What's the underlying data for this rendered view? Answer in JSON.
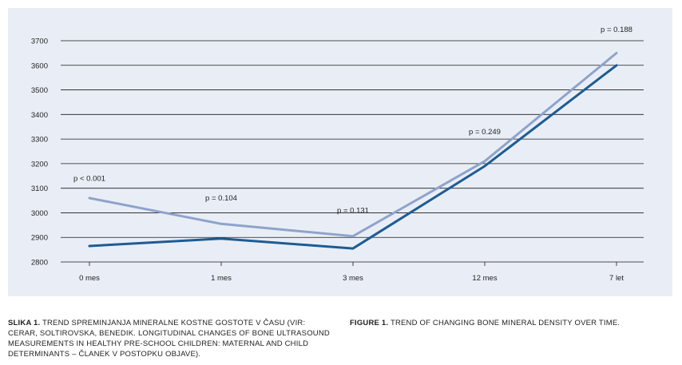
{
  "chart_data": {
    "type": "line",
    "categories": [
      "0 mes",
      "1 mes",
      "3 mes",
      "12 mes",
      "7 let"
    ],
    "series": [
      {
        "values": [
          3060,
          2955,
          2905,
          3210,
          3650
        ],
        "color": "#8ea3cc"
      },
      {
        "values": [
          2865,
          2895,
          2855,
          3190,
          3600
        ],
        "color": "#1d5c94"
      }
    ],
    "annotations": [
      "p < 0.001",
      "p = 0.104",
      "p = 0.131",
      "p = 0.249",
      "p = 0.188"
    ],
    "annotation_values": [
      3140,
      3060,
      3010,
      3330,
      3745
    ],
    "yticks": [
      2800,
      2900,
      3000,
      3100,
      3200,
      3300,
      3400,
      3500,
      3600,
      3700
    ],
    "ylim": [
      2800,
      3700
    ],
    "grid": true,
    "title": "",
    "xlabel": "",
    "ylabel": ""
  },
  "captions": {
    "left_label": "SLIKA 1.",
    "left_text": "TREND SPREMINJANJA MINERALNE KOSTNE GOSTOTE V ČASU (VIR: CERAR, SOLTIROVSKA, BENEDIK. LONGITUDINAL CHANGES OF BONE ULTRASOUND MEASUREMENTS IN HEALTHY PRE-SCHOOL CHILDREN: MATERNAL AND CHILD DETERMINANTS – ČLANEK V POSTOPKU OBJAVE).",
    "right_label": "FIGURE 1.",
    "right_text": "TREND OF CHANGING BONE MINERAL DENSITY OVER TIME."
  }
}
